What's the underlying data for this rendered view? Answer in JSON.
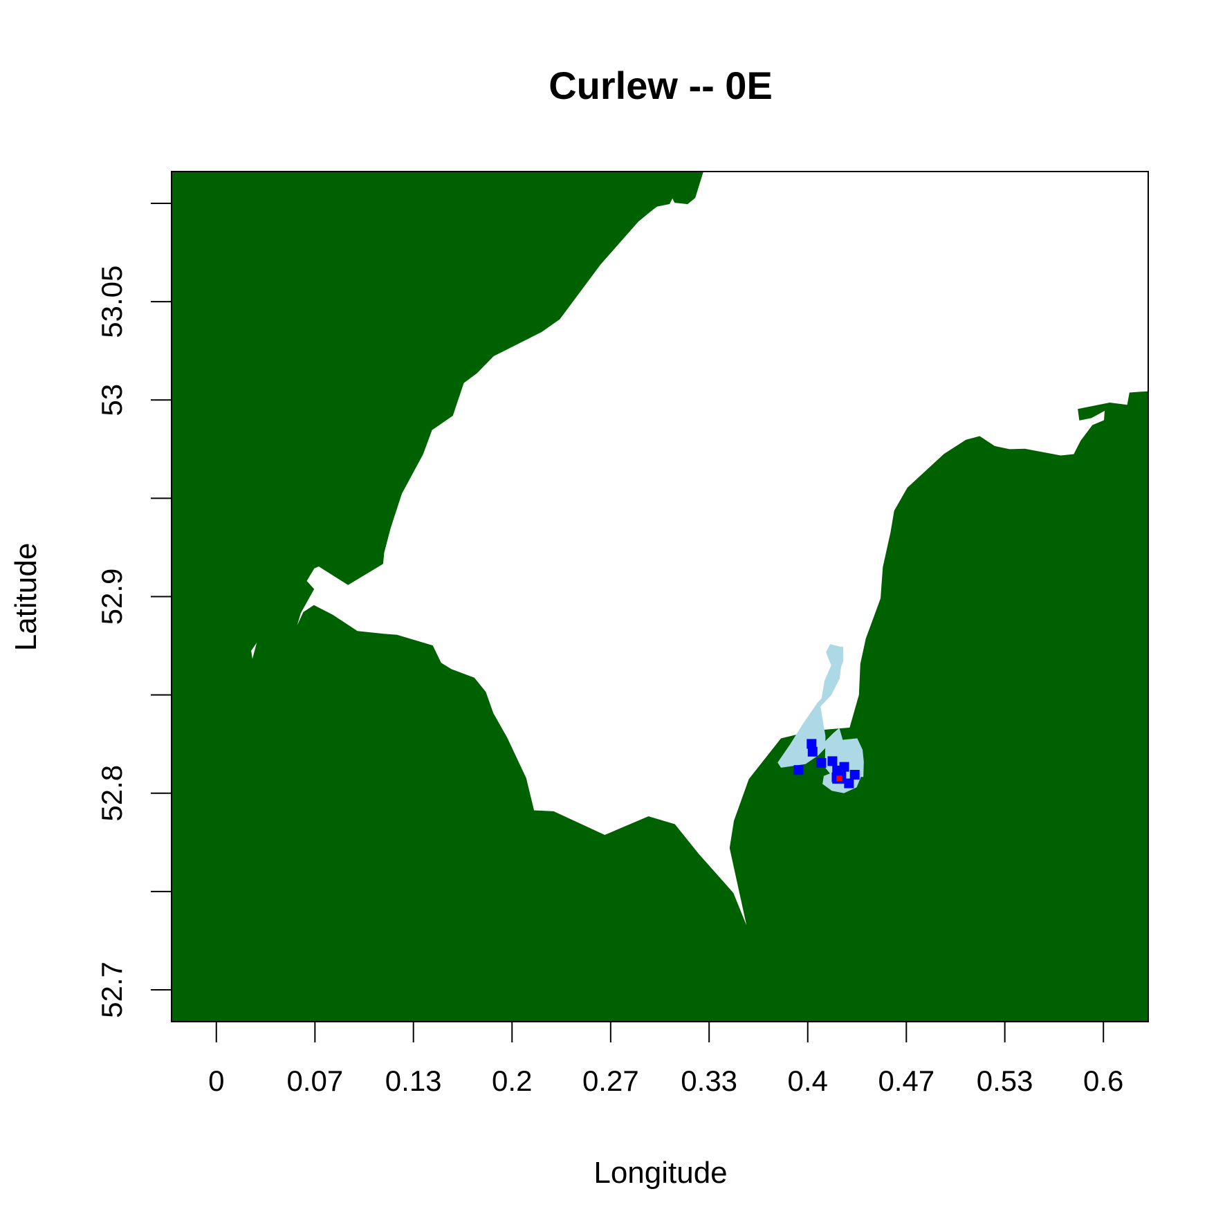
{
  "chart_data": {
    "type": "map",
    "title": "Curlew -- 0E",
    "xlabel": "Longitude",
    "ylabel": "Latitude",
    "xlim": [
      -0.0303,
      0.6303
    ],
    "ylim": [
      52.6838,
      53.1162
    ],
    "x_ticks": [
      {
        "value": 0.0,
        "label": "0"
      },
      {
        "value": 0.0667,
        "label": "0.07"
      },
      {
        "value": 0.1333,
        "label": "0.13"
      },
      {
        "value": 0.2,
        "label": "0.2"
      },
      {
        "value": 0.2667,
        "label": "0.27"
      },
      {
        "value": 0.3333,
        "label": "0.33"
      },
      {
        "value": 0.4,
        "label": "0.4"
      },
      {
        "value": 0.4667,
        "label": "0.47"
      },
      {
        "value": 0.5333,
        "label": "0.53"
      },
      {
        "value": 0.6,
        "label": "0.6"
      }
    ],
    "y_ticks": [
      {
        "value": 52.7,
        "label": "52.7"
      },
      {
        "value": 52.75,
        "label": ""
      },
      {
        "value": 52.8,
        "label": "52.8"
      },
      {
        "value": 52.85,
        "label": ""
      },
      {
        "value": 52.9,
        "label": "52.9"
      },
      {
        "value": 52.95,
        "label": ""
      },
      {
        "value": 53.0,
        "label": "53"
      },
      {
        "value": 53.05,
        "label": "53.05"
      },
      {
        "value": 53.1,
        "label": ""
      }
    ],
    "colors": {
      "land": "#006100",
      "sea": "#ffffff",
      "range": "#add8e6",
      "core": "#0000ff",
      "centre": "#ff0000",
      "frame": "#000000"
    },
    "land": {
      "northwest_coast": [
        [
          -0.0303,
          53.1162
        ],
        [
          0.3292,
          53.1162
        ],
        [
          0.3237,
          53.1029
        ],
        [
          0.3187,
          53.0998
        ],
        [
          0.3101,
          53.1005
        ],
        [
          0.3085,
          53.1029
        ],
        [
          0.3064,
          53.0998
        ],
        [
          0.2979,
          53.0985
        ],
        [
          0.2948,
          53.0967
        ],
        [
          0.2855,
          53.091
        ],
        [
          0.2596,
          53.0689
        ],
        [
          0.2321,
          53.0412
        ],
        [
          0.2199,
          53.0347
        ],
        [
          0.1874,
          53.0224
        ],
        [
          0.1761,
          53.0137
        ],
        [
          0.1672,
          53.0087
        ],
        [
          0.1598,
          52.9921
        ],
        [
          0.1457,
          52.9848
        ],
        [
          0.1396,
          52.9724
        ],
        [
          0.1252,
          52.9523
        ],
        [
          0.1177,
          52.9349
        ],
        [
          0.1133,
          52.9223
        ],
        [
          0.1126,
          52.9167
        ],
        [
          0.0891,
          52.9061
        ],
        [
          0.0693,
          52.9155
        ],
        [
          0.0661,
          52.9145
        ],
        [
          0.0609,
          52.9079
        ],
        [
          0.0659,
          52.9038
        ],
        [
          0.0569,
          52.8917
        ],
        [
          0.0536,
          52.8832
        ],
        [
          0.0279,
          52.8775
        ],
        [
          0.0233,
          52.8725
        ],
        [
          0.0267,
          52.8559
        ],
        [
          0.0198,
          52.8547
        ],
        [
          0.0148,
          52.864
        ],
        [
          -0.0085,
          52.8491
        ],
        [
          -0.0303,
          52.8469
        ]
      ],
      "south_coast": [
        [
          -0.0303,
          52.8469
        ],
        [
          -0.0085,
          52.8491
        ],
        [
          0.0148,
          52.864
        ],
        [
          0.0198,
          52.8547
        ],
        [
          0.0279,
          52.8775
        ],
        [
          0.0536,
          52.8832
        ],
        [
          0.059,
          52.892
        ],
        [
          0.066,
          52.8955
        ],
        [
          0.0786,
          52.8906
        ],
        [
          0.0954,
          52.8823
        ],
        [
          0.1133,
          52.8809
        ],
        [
          0.1222,
          52.8804
        ],
        [
          0.1462,
          52.875
        ],
        [
          0.1519,
          52.8662
        ],
        [
          0.159,
          52.8629
        ],
        [
          0.1744,
          52.8586
        ],
        [
          0.1821,
          52.8514
        ],
        [
          0.1871,
          52.8407
        ],
        [
          0.1965,
          52.8282
        ],
        [
          0.2094,
          52.8076
        ],
        [
          0.2147,
          52.7911
        ],
        [
          0.2281,
          52.7906
        ],
        [
          0.2627,
          52.7786
        ],
        [
          0.2923,
          52.7881
        ],
        [
          0.31,
          52.7841
        ],
        [
          0.3259,
          52.7692
        ],
        [
          0.3495,
          52.7492
        ],
        [
          0.3594,
          52.7308
        ],
        [
          0.3474,
          52.7721
        ],
        [
          0.3503,
          52.7859
        ],
        [
          0.3604,
          52.8071
        ],
        [
          0.382,
          52.8277
        ],
        [
          0.4032,
          52.8316
        ],
        [
          0.4285,
          52.8332
        ],
        [
          0.4349,
          52.85
        ],
        [
          0.4358,
          52.8658
        ],
        [
          0.4395,
          52.8786
        ],
        [
          0.4495,
          52.899
        ],
        [
          0.451,
          52.915
        ],
        [
          0.4562,
          52.9326
        ],
        [
          0.4587,
          52.9436
        ],
        [
          0.4676,
          52.9553
        ],
        [
          0.4923,
          52.9724
        ],
        [
          0.507,
          52.9796
        ],
        [
          0.5163,
          52.9814
        ],
        [
          0.5265,
          52.9764
        ],
        [
          0.5365,
          52.9748
        ],
        [
          0.5468,
          52.975
        ],
        [
          0.5711,
          52.9716
        ],
        [
          0.5801,
          52.9723
        ],
        [
          0.5848,
          52.9792
        ],
        [
          0.5927,
          52.9871
        ],
        [
          0.6006,
          52.9896
        ],
        [
          0.6011,
          52.9948
        ],
        [
          0.5918,
          52.991
        ],
        [
          0.5839,
          52.9898
        ],
        [
          0.5829,
          52.9953
        ],
        [
          0.6043,
          52.9985
        ],
        [
          0.6303,
          52.996
        ],
        [
          0.6303,
          52.6838
        ],
        [
          -0.0303,
          52.6838
        ]
      ],
      "northeast_islet": [
        [
          0.6113,
          52.9892
        ],
        [
          0.6163,
          52.9975
        ],
        [
          0.6178,
          53.0036
        ],
        [
          0.6303,
          53.0043
        ],
        [
          0.6303,
          52.996
        ],
        [
          0.622,
          52.9936
        ],
        [
          0.6144,
          52.99
        ]
      ]
    },
    "range_outline": [
      [
        0.4223,
        52.8745
      ],
      [
        0.4225,
        52.8677
      ],
      [
        0.421,
        52.8646
      ],
      [
        0.42,
        52.8587
      ],
      [
        0.4145,
        52.8505
      ],
      [
        0.408,
        52.8454
      ],
      [
        0.3981,
        52.8346
      ],
      [
        0.3892,
        52.8239
      ],
      [
        0.3816,
        52.8156
      ],
      [
        0.3827,
        52.8143
      ],
      [
        0.3979,
        52.816
      ],
      [
        0.406,
        52.8201
      ],
      [
        0.4129,
        52.8255
      ],
      [
        0.4183,
        52.8296
      ],
      [
        0.4205,
        52.831
      ],
      [
        0.4225,
        52.8258
      ],
      [
        0.4325,
        52.8266
      ],
      [
        0.4355,
        52.8218
      ],
      [
        0.4363,
        52.816
      ],
      [
        0.436,
        52.8083
      ],
      [
        0.4331,
        52.803
      ],
      [
        0.4245,
        52.8
      ],
      [
        0.4163,
        52.8012
      ],
      [
        0.41,
        52.8047
      ],
      [
        0.4116,
        52.8122
      ],
      [
        0.412,
        52.829
      ],
      [
        0.4085,
        52.8446
      ],
      [
        0.4114,
        52.8573
      ],
      [
        0.4159,
        52.8651
      ],
      [
        0.4123,
        52.8717
      ],
      [
        0.4152,
        52.8758
      ]
    ],
    "core_cells": [
      [
        0.4195,
        52.8081
      ],
      [
        0.4247,
        52.8134
      ],
      [
        0.4167,
        52.8163
      ],
      [
        0.4092,
        52.8154
      ],
      [
        0.4033,
        52.8211
      ],
      [
        0.4026,
        52.8251
      ],
      [
        0.3938,
        52.8118
      ],
      [
        0.4318,
        52.8094
      ],
      [
        0.4279,
        52.805
      ],
      [
        0.4213,
        52.8075
      ]
    ],
    "centre_point": [
      0.4213,
      52.8075
    ]
  }
}
